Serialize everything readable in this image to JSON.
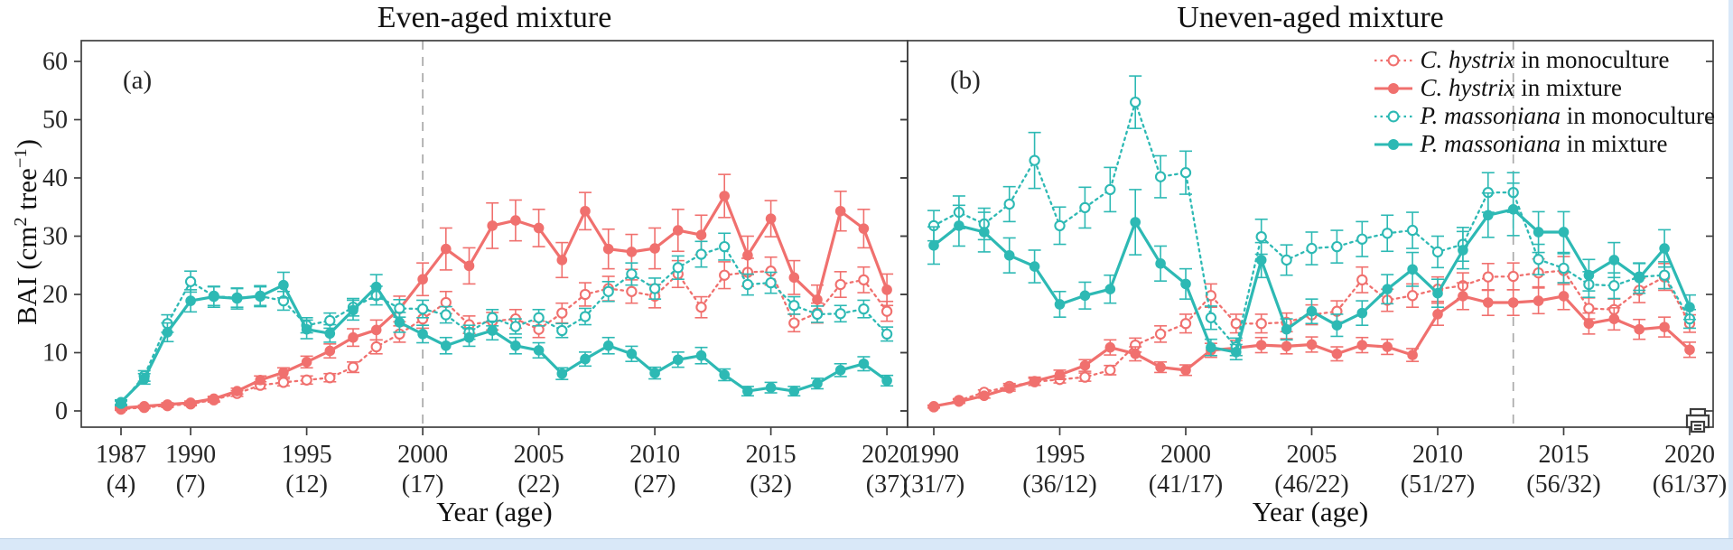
{
  "figure": {
    "ylabel_parts": {
      "pre": "BAI  (cm",
      "sup1": "2",
      "mid": " tree",
      "sup2": "−1",
      "post": ")"
    },
    "y_ticks": [
      0,
      10,
      20,
      30,
      40,
      50,
      60
    ]
  },
  "style": {
    "c_hystrix_color": "#f0706e",
    "p_massoniana_color": "#2db9b4",
    "axis_color": "#3f3f3f",
    "dashed_line_color": "#a9a9a9",
    "tick_text_color": "#262626",
    "window_edge_color": "#d9e8f8"
  },
  "legend": {
    "items": [
      {
        "species": "C. hystrix",
        "context": " in monoculture",
        "color": "#f0706e",
        "line": "dotted",
        "marker": "open"
      },
      {
        "species": "C. hystrix",
        "context": " in mixture",
        "color": "#f0706e",
        "line": "solid",
        "marker": "filled"
      },
      {
        "species": "P. massoniana",
        "context": " in monoculture",
        "color": "#2db9b4",
        "line": "dotted",
        "marker": "open"
      },
      {
        "species": "P. massoniana",
        "context": " in mixture",
        "color": "#2db9b4",
        "line": "solid",
        "marker": "filled"
      }
    ]
  },
  "chart_data": [
    {
      "type": "line",
      "panel_label": "(a)",
      "title": "Even-aged mixture",
      "xlabel": "Year (age)",
      "ylabel": "BAI (cm2 tree-1)",
      "ylim": [
        0,
        60
      ],
      "dashed_year": 2000,
      "x_start_year": 1987,
      "x_end_year": 2020,
      "x_ticks": [
        {
          "year": 1987,
          "label": "1987",
          "age": "(4)"
        },
        {
          "year": 1990,
          "label": "1990",
          "age": "(7)"
        },
        {
          "year": 1995,
          "label": "1995",
          "age": "(12)"
        },
        {
          "year": 2000,
          "label": "2000",
          "age": "(17)"
        },
        {
          "year": 2005,
          "label": "2005",
          "age": "(22)"
        },
        {
          "year": 2010,
          "label": "2010",
          "age": "(27)"
        },
        {
          "year": 2015,
          "label": "2015",
          "age": "(32)"
        },
        {
          "year": 2020,
          "label": "2020",
          "age": "(37)"
        }
      ],
      "series": [
        {
          "name": "C. hystrix in monoculture",
          "color": "#f0706e",
          "style": "dotted",
          "marker": "open",
          "values": [
            0.3,
            0.6,
            0.9,
            1.2,
            1.9,
            3.0,
            4.4,
            4.9,
            5.3,
            5.7,
            7.5,
            11.0,
            13.2,
            15.8,
            18.6,
            14.8,
            15.4,
            15.8,
            14.0,
            16.8,
            20.0,
            21.0,
            20.5,
            19.7,
            23.5,
            17.8,
            23.3,
            23.8,
            24.0,
            15.1,
            16.8,
            21.7,
            22.5,
            17.1
          ],
          "err": [
            0.2,
            0.2,
            0.3,
            0.3,
            0.4,
            0.5,
            0.6,
            0.6,
            0.7,
            0.7,
            0.9,
            1.2,
            1.4,
            1.6,
            1.9,
            1.5,
            1.5,
            1.6,
            1.4,
            1.7,
            2.0,
            2.1,
            2.0,
            2.0,
            2.3,
            1.8,
            2.3,
            2.4,
            2.4,
            1.5,
            1.7,
            2.2,
            2.2,
            1.7
          ]
        },
        {
          "name": "C. hystrix in mixture",
          "color": "#f0706e",
          "style": "solid",
          "marker": "filled",
          "values": [
            0.5,
            0.8,
            1.1,
            1.4,
            2.1,
            3.4,
            5.3,
            6.6,
            8.4,
            10.3,
            12.6,
            13.9,
            17.5,
            22.6,
            27.8,
            24.9,
            31.8,
            32.7,
            31.4,
            25.9,
            34.3,
            27.8,
            27.3,
            27.9,
            31.0,
            30.2,
            36.9,
            26.7,
            33.0,
            22.9,
            19.1,
            34.3,
            31.3,
            20.8
          ],
          "err": [
            0.2,
            0.2,
            0.3,
            0.3,
            0.4,
            0.5,
            0.7,
            0.8,
            1.0,
            1.2,
            1.5,
            1.7,
            2.2,
            2.8,
            3.6,
            3.1,
            3.9,
            3.5,
            3.2,
            3.0,
            3.2,
            3.4,
            3.0,
            3.5,
            3.6,
            3.4,
            3.7,
            3.3,
            3.1,
            2.9,
            2.5,
            3.4,
            3.3,
            2.7
          ]
        },
        {
          "name": "P. massoniana in monoculture",
          "color": "#2db9b4",
          "style": "dotted",
          "marker": "open",
          "values": [
            1.3,
            6.0,
            15.0,
            22.2,
            19.7,
            19.4,
            19.7,
            18.9,
            14.7,
            15.5,
            17.8,
            19.8,
            17.6,
            17.5,
            16.5,
            13.5,
            16.0,
            14.5,
            16.0,
            13.8,
            16.2,
            20.5,
            23.5,
            21.0,
            24.6,
            26.9,
            28.2,
            21.7,
            22.0,
            18.1,
            16.6,
            16.7,
            17.5,
            13.2
          ],
          "err": [
            0.4,
            0.9,
            1.5,
            1.8,
            1.6,
            1.6,
            1.6,
            1.6,
            1.3,
            1.3,
            1.5,
            1.6,
            1.5,
            1.5,
            1.4,
            1.2,
            1.4,
            1.3,
            1.4,
            1.2,
            1.4,
            1.7,
            1.9,
            1.8,
            2.0,
            2.2,
            2.3,
            1.8,
            1.8,
            1.5,
            1.4,
            1.4,
            1.5,
            1.2
          ]
        },
        {
          "name": "P. massoniana in mixture",
          "color": "#2db9b4",
          "style": "solid",
          "marker": "filled",
          "values": [
            1.5,
            5.5,
            13.5,
            18.9,
            19.6,
            19.3,
            19.7,
            21.6,
            14.0,
            13.3,
            17.3,
            21.3,
            15.2,
            13.2,
            11.2,
            12.6,
            13.8,
            11.2,
            10.4,
            6.4,
            8.9,
            11.2,
            9.8,
            6.5,
            8.8,
            9.5,
            6.2,
            3.4,
            4.0,
            3.4,
            4.7,
            7.0,
            8.1,
            5.2
          ],
          "err": [
            0.4,
            0.9,
            1.6,
            1.9,
            1.8,
            1.8,
            1.8,
            2.2,
            1.6,
            1.5,
            1.7,
            2.1,
            1.7,
            1.5,
            1.4,
            1.5,
            1.6,
            1.4,
            1.3,
            1.0,
            1.2,
            1.4,
            1.3,
            1.0,
            1.3,
            1.4,
            1.0,
            0.8,
            0.9,
            0.8,
            0.9,
            1.1,
            1.2,
            0.9
          ]
        }
      ]
    },
    {
      "type": "line",
      "panel_label": "(b)",
      "title": "Uneven-aged mixture",
      "xlabel": "Year (age)",
      "ylabel": "BAI (cm2 tree-1)",
      "ylim": [
        0,
        60
      ],
      "dashed_year": 2013,
      "x_start_year": 1990,
      "x_end_year": 2020,
      "x_ticks": [
        {
          "year": 1990,
          "label": "1990",
          "age": "(31/7)"
        },
        {
          "year": 1995,
          "label": "1995",
          "age": "(36/12)"
        },
        {
          "year": 2000,
          "label": "2000",
          "age": "(41/17)"
        },
        {
          "year": 2005,
          "label": "2005",
          "age": "(46/22)"
        },
        {
          "year": 2010,
          "label": "2010",
          "age": "(51/27)"
        },
        {
          "year": 2015,
          "label": "2015",
          "age": "(56/32)"
        },
        {
          "year": 2020,
          "label": "2020",
          "age": "(61/37)"
        }
      ],
      "series": [
        {
          "name": "C. hystrix in monoculture",
          "color": "#f0706e",
          "style": "dotted",
          "marker": "open",
          "values": [
            0.7,
            1.8,
            3.2,
            4.2,
            5.0,
            5.4,
            5.8,
            7.0,
            11.3,
            13.2,
            15.0,
            19.8,
            15.0,
            15.0,
            15.2,
            16.5,
            17.1,
            22.5,
            19.0,
            19.8,
            20.9,
            21.5,
            23.0,
            23.1,
            23.7,
            24.1,
            17.6,
            17.4,
            20.7,
            23.0,
            15.0
          ],
          "err": [
            0.2,
            0.3,
            0.4,
            0.5,
            0.6,
            0.6,
            0.7,
            0.8,
            1.2,
            1.4,
            1.6,
            2.0,
            1.6,
            1.6,
            1.6,
            1.7,
            1.8,
            2.2,
            1.9,
            2.0,
            2.1,
            2.2,
            2.3,
            2.3,
            2.4,
            2.4,
            1.8,
            1.8,
            2.1,
            2.3,
            1.5
          ]
        },
        {
          "name": "C. hystrix in mixture",
          "color": "#f0706e",
          "style": "solid",
          "marker": "filled",
          "values": [
            0.8,
            1.6,
            2.6,
            3.9,
            5.1,
            6.2,
            7.8,
            10.9,
            9.8,
            7.5,
            7.0,
            10.4,
            10.8,
            11.3,
            11.1,
            11.4,
            9.8,
            11.3,
            11.0,
            9.6,
            16.6,
            19.7,
            18.6,
            18.6,
            18.9,
            19.7,
            15.0,
            15.8,
            14.0,
            14.4,
            10.5
          ],
          "err": [
            0.2,
            0.3,
            0.4,
            0.5,
            0.7,
            0.8,
            1.0,
            1.3,
            1.2,
            0.9,
            0.9,
            1.2,
            1.3,
            1.3,
            1.3,
            1.3,
            1.2,
            1.3,
            1.3,
            1.1,
            1.9,
            2.3,
            2.2,
            2.2,
            2.2,
            2.3,
            1.8,
            1.9,
            1.7,
            1.7,
            1.3
          ]
        },
        {
          "name": "P. massoniana in monoculture",
          "color": "#2db9b4",
          "style": "dotted",
          "marker": "open",
          "values": [
            31.8,
            34.1,
            32.1,
            35.5,
            43.0,
            31.8,
            34.9,
            38.0,
            53.0,
            40.2,
            40.9,
            16.0,
            11.0,
            29.9,
            25.9,
            27.9,
            28.2,
            29.5,
            30.5,
            31.0,
            27.3,
            28.6,
            37.5,
            37.5,
            26.0,
            24.5,
            21.7,
            21.5,
            23.0,
            23.3,
            15.8
          ],
          "err": [
            2.6,
            2.8,
            2.7,
            3.0,
            4.8,
            3.2,
            3.5,
            3.8,
            4.5,
            3.6,
            3.7,
            2.0,
            1.5,
            3.0,
            2.6,
            2.8,
            2.8,
            3.0,
            3.1,
            3.1,
            2.7,
            2.9,
            3.4,
            3.4,
            2.6,
            2.5,
            2.2,
            2.2,
            2.3,
            2.3,
            1.6
          ]
        },
        {
          "name": "P. massoniana in mixture",
          "color": "#2db9b4",
          "style": "solid",
          "marker": "filled",
          "values": [
            28.4,
            31.8,
            30.7,
            26.7,
            24.8,
            18.3,
            19.8,
            20.9,
            32.4,
            25.3,
            21.8,
            10.9,
            10.1,
            25.9,
            14.0,
            17.1,
            14.7,
            16.8,
            20.9,
            24.3,
            20.2,
            27.6,
            33.6,
            34.6,
            30.7,
            30.7,
            23.3,
            25.9,
            22.8,
            27.9,
            17.8
          ],
          "err": [
            3.2,
            3.5,
            3.4,
            3.0,
            2.8,
            2.2,
            2.3,
            2.4,
            5.6,
            3.0,
            2.6,
            1.4,
            1.3,
            3.0,
            1.8,
            2.1,
            1.9,
            2.1,
            2.5,
            2.9,
            2.4,
            3.2,
            3.8,
            4.5,
            3.5,
            3.5,
            2.7,
            3.0,
            2.6,
            3.2,
            2.1
          ]
        }
      ]
    }
  ]
}
